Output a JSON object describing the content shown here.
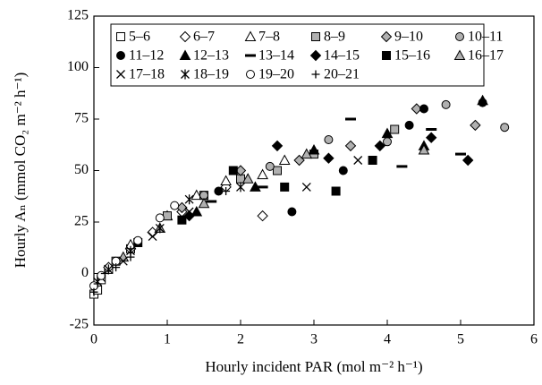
{
  "chart_data": {
    "type": "scatter",
    "x_label": "Hourly incident PAR (mol m⁻² h⁻¹)",
    "y_label": "Hourly Aₙ (mmol CO₂ m⁻² h⁻¹)",
    "xlim": [
      0,
      6
    ],
    "ylim": [
      -25,
      125
    ],
    "xticks": [
      0,
      1,
      2,
      3,
      4,
      5,
      6
    ],
    "yticks": [
      -25,
      0,
      25,
      50,
      75,
      100,
      125
    ],
    "series": [
      {
        "name": "5–6",
        "marker": "square-open",
        "color": "#000000",
        "x": [
          0,
          0.05,
          0.1,
          0.2,
          0.3,
          0.5
        ],
        "values": [
          -10,
          -8,
          -3,
          2,
          6,
          12
        ]
      },
      {
        "name": "6–7",
        "marker": "diamond-open",
        "color": "#000000",
        "x": [
          0.2,
          0.5,
          0.8,
          1.2,
          1.8,
          2.3
        ],
        "values": [
          3,
          12,
          20,
          30,
          42,
          28
        ]
      },
      {
        "name": "7–8",
        "marker": "triangle-open",
        "color": "#000000",
        "x": [
          0.5,
          1,
          1.4,
          1.8,
          2.3,
          2.6
        ],
        "values": [
          14,
          28,
          38,
          45,
          48,
          55
        ]
      },
      {
        "name": "8–9",
        "marker": "square-gray",
        "color": "#b0b0b0",
        "x": [
          1,
          1.5,
          2,
          2.5,
          3,
          4.1
        ],
        "values": [
          28,
          38,
          46,
          50,
          58,
          70
        ]
      },
      {
        "name": "9–10",
        "marker": "diamond-gray",
        "color": "#b0b0b0",
        "x": [
          1.2,
          2,
          2.8,
          3.5,
          4.4,
          5.2
        ],
        "values": [
          32,
          50,
          55,
          62,
          80,
          72
        ]
      },
      {
        "name": "10–11",
        "marker": "circle-gray",
        "color": "#b0b0b0",
        "x": [
          1.5,
          2.4,
          3.2,
          4.0,
          4.8,
          5.6
        ],
        "values": [
          38,
          52,
          65,
          64,
          82,
          71
        ]
      },
      {
        "name": "11–12",
        "marker": "circle-filled",
        "color": "#000000",
        "x": [
          1.7,
          2.7,
          3.4,
          4.3,
          4.5,
          5.3
        ],
        "values": [
          40,
          30,
          50,
          72,
          80,
          83
        ]
      },
      {
        "name": "12–13",
        "marker": "triangle-filled",
        "color": "#000000",
        "x": [
          1.4,
          2.2,
          3.0,
          4.0,
          4.5,
          5.3
        ],
        "values": [
          30,
          42,
          60,
          68,
          62,
          84
        ]
      },
      {
        "name": "13–14",
        "marker": "dash",
        "color": "#000000",
        "x": [
          1.6,
          2.3,
          3.5,
          4.2,
          4.6,
          5.0
        ],
        "values": [
          35,
          42,
          75,
          52,
          70,
          58
        ]
      },
      {
        "name": "14–15",
        "marker": "diamond-filled",
        "color": "#000000",
        "x": [
          1.3,
          2.5,
          3.2,
          3.9,
          4.6,
          5.1
        ],
        "values": [
          28,
          62,
          56,
          62,
          66,
          55
        ]
      },
      {
        "name": "15–16",
        "marker": "square-filled",
        "color": "#000000",
        "x": [
          0.6,
          1.2,
          1.9,
          2.6,
          3.3,
          3.8
        ],
        "values": [
          15,
          26,
          50,
          42,
          40,
          55
        ]
      },
      {
        "name": "16–17",
        "marker": "triangle-gray",
        "color": "#b0b0b0",
        "x": [
          0.4,
          0.9,
          1.5,
          2.1,
          2.9,
          4.5
        ],
        "values": [
          8,
          22,
          34,
          46,
          58,
          60
        ]
      },
      {
        "name": "17–18",
        "marker": "cross",
        "color": "#000000",
        "x": [
          0.1,
          0.4,
          0.8,
          1.3,
          2.9,
          3.6
        ],
        "values": [
          -2,
          6,
          18,
          30,
          42,
          55
        ]
      },
      {
        "name": "18–19",
        "marker": "asterisk",
        "color": "#000000",
        "x": [
          0.05,
          0.2,
          0.5,
          0.9,
          1.3,
          2.0
        ],
        "values": [
          -4,
          2,
          11,
          22,
          36,
          42
        ]
      },
      {
        "name": "19–20",
        "marker": "circle-open",
        "color": "#000000",
        "x": [
          0,
          0.1,
          0.3,
          0.6,
          0.9,
          1.1
        ],
        "values": [
          -6,
          -1,
          6,
          16,
          27,
          33
        ]
      },
      {
        "name": "20–21",
        "marker": "plus",
        "color": "#000000",
        "x": [
          0,
          0.05,
          0.15,
          0.3,
          0.5,
          1.8
        ],
        "values": [
          -9,
          -5,
          0,
          3,
          8,
          40
        ]
      }
    ]
  }
}
